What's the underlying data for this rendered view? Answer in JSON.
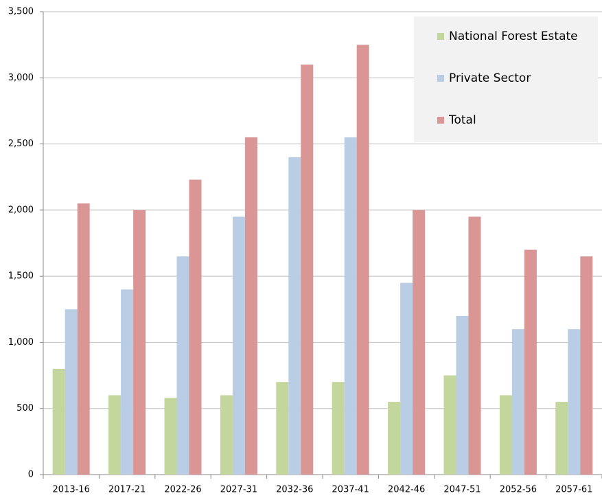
{
  "chart_data": {
    "type": "bar",
    "categories": [
      "2013-16",
      "2017-21",
      "2022-26",
      "2027-31",
      "2032-36",
      "2037-41",
      "2042-46",
      "2047-51",
      "2052-56",
      "2057-61"
    ],
    "series": [
      {
        "name": "National Forest Estate",
        "color": "#c3d69b",
        "values": [
          800,
          600,
          580,
          600,
          700,
          700,
          550,
          750,
          600,
          550
        ]
      },
      {
        "name": "Private Sector",
        "color": "#b9cde5",
        "values": [
          1250,
          1400,
          1650,
          1950,
          2400,
          2550,
          1450,
          1200,
          1100,
          1100
        ]
      },
      {
        "name": "Total",
        "color": "#d99694",
        "values": [
          2050,
          2000,
          2230,
          2550,
          3100,
          3250,
          2000,
          1950,
          1700,
          1650
        ]
      }
    ],
    "ylim": [
      0,
      3500
    ],
    "yticks": [
      0,
      500,
      {
        "value": 1000,
        "label": "1,000"
      },
      {
        "value": 1500,
        "label": "1,500"
      },
      {
        "value": 2000,
        "label": "2,000"
      },
      {
        "value": 2500,
        "label": "2,500"
      },
      {
        "value": 3000,
        "label": "3,000"
      },
      {
        "value": 3500,
        "label": "3,500"
      }
    ],
    "grid": true,
    "legend": "top-right"
  }
}
